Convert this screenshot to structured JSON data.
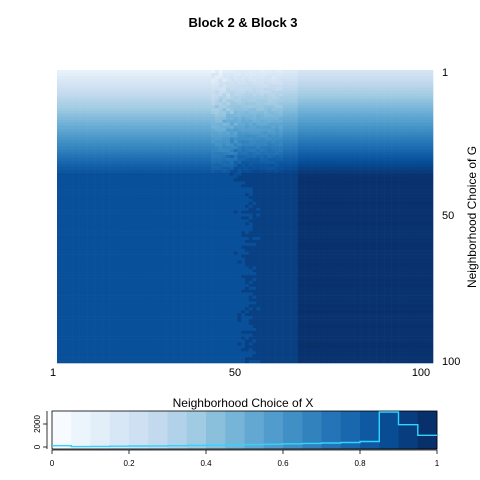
{
  "chart_data": [
    {
      "type": "heatmap",
      "title": "Block 2 & Block 3",
      "ylabel": "Neighborhood Choice of G",
      "x_ticks": [
        "1",
        "50",
        "100"
      ],
      "y_ticks": [
        "1",
        "50",
        "100"
      ],
      "x_range": [
        1,
        100
      ],
      "y_range": [
        1,
        100
      ],
      "y_reversed": true,
      "color_scale": "Blues",
      "colors": [
        "#f7fbff",
        "#deebf7",
        "#c6dbef",
        "#9ecae1",
        "#6baed6",
        "#4292c6",
        "#2171b5",
        "#08519c",
        "#08306b"
      ],
      "grid": false
    },
    {
      "type": "histogram",
      "title": "Neighborhood Choice of X",
      "x_range": [
        0,
        1
      ],
      "x_ticks": [
        "0",
        "0.2",
        "0.4",
        "0.6",
        "0.8",
        "1"
      ],
      "y_ticks": [
        "0",
        "2000"
      ],
      "bins": 20,
      "counts": [
        120,
        40,
        60,
        80,
        90,
        100,
        120,
        150,
        170,
        200,
        230,
        260,
        300,
        340,
        380,
        420,
        520,
        3300,
        2100,
        1100
      ],
      "line_color": "#30d4ff"
    }
  ]
}
